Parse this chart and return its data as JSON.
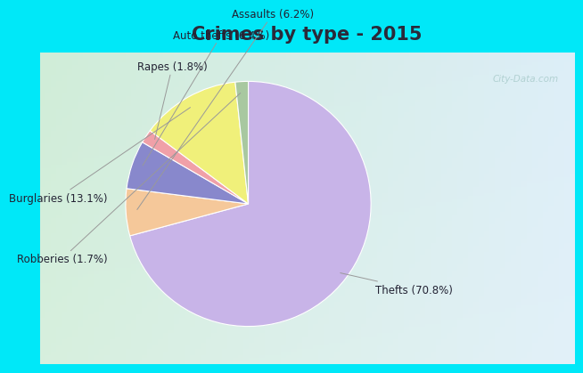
{
  "title": "Crimes by type - 2015",
  "labels": [
    "Thefts",
    "Assaults",
    "Auto thefts",
    "Rapes",
    "Burglaries",
    "Robberies"
  ],
  "values": [
    70.8,
    6.2,
    6.4,
    1.8,
    13.1,
    1.7
  ],
  "colors": [
    "#c8b4e8",
    "#f5c89a",
    "#8888cc",
    "#f0a0a8",
    "#f0f07a",
    "#a8c8a0"
  ],
  "label_texts": [
    "Thefts (70.8%)",
    "Assaults (6.2%)",
    "Auto thefts (6.4%)",
    "Rapes (1.8%)",
    "Burglaries (13.1%)",
    "Robberies (1.7%)"
  ],
  "background_cyan": "#00e8f8",
  "title_color": "#2a2a3a",
  "title_fontsize": 15,
  "label_fontsize": 8.5,
  "watermark_text": "City-Data.com",
  "watermark_color": "#aacccc",
  "startangle": 90
}
